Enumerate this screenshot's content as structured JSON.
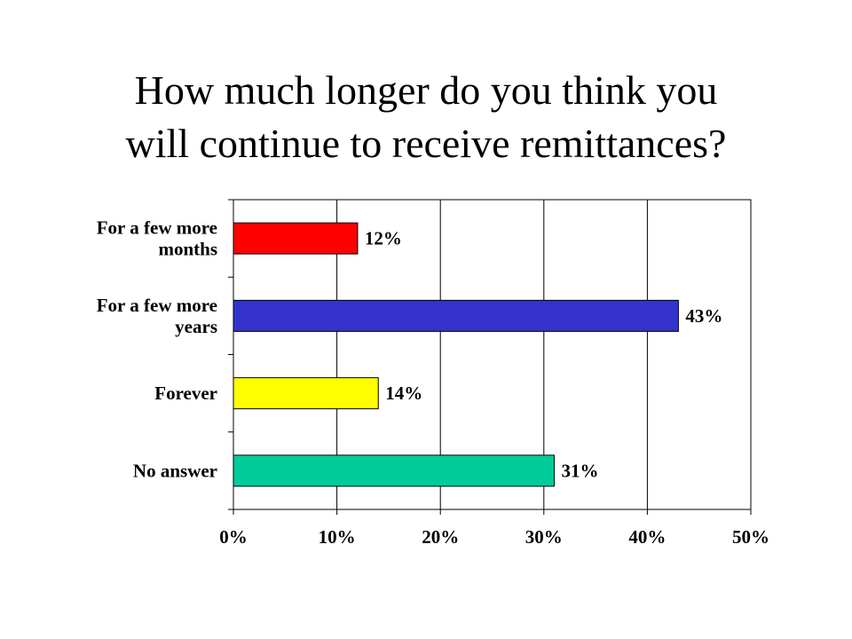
{
  "title": {
    "line1": "How much longer do you think you",
    "line2": "will continue to receive remittances?"
  },
  "chart_data": {
    "type": "bar",
    "orientation": "horizontal",
    "categories": [
      [
        "For a few more",
        "months"
      ],
      [
        "For a few more",
        "years"
      ],
      [
        "Forever"
      ],
      [
        "No answer"
      ]
    ],
    "values": [
      12,
      43,
      14,
      31
    ],
    "data_labels": [
      "12%",
      "43%",
      "14%",
      "31%"
    ],
    "colors": [
      "#ff0000",
      "#3333cc",
      "#ffff00",
      "#00cc99"
    ],
    "xlim": [
      0,
      50
    ],
    "x_ticks": [
      0,
      10,
      20,
      30,
      40,
      50
    ],
    "x_tick_labels": [
      "0%",
      "10%",
      "20%",
      "30%",
      "40%",
      "50%"
    ],
    "grid": "vertical",
    "legend": "none"
  }
}
